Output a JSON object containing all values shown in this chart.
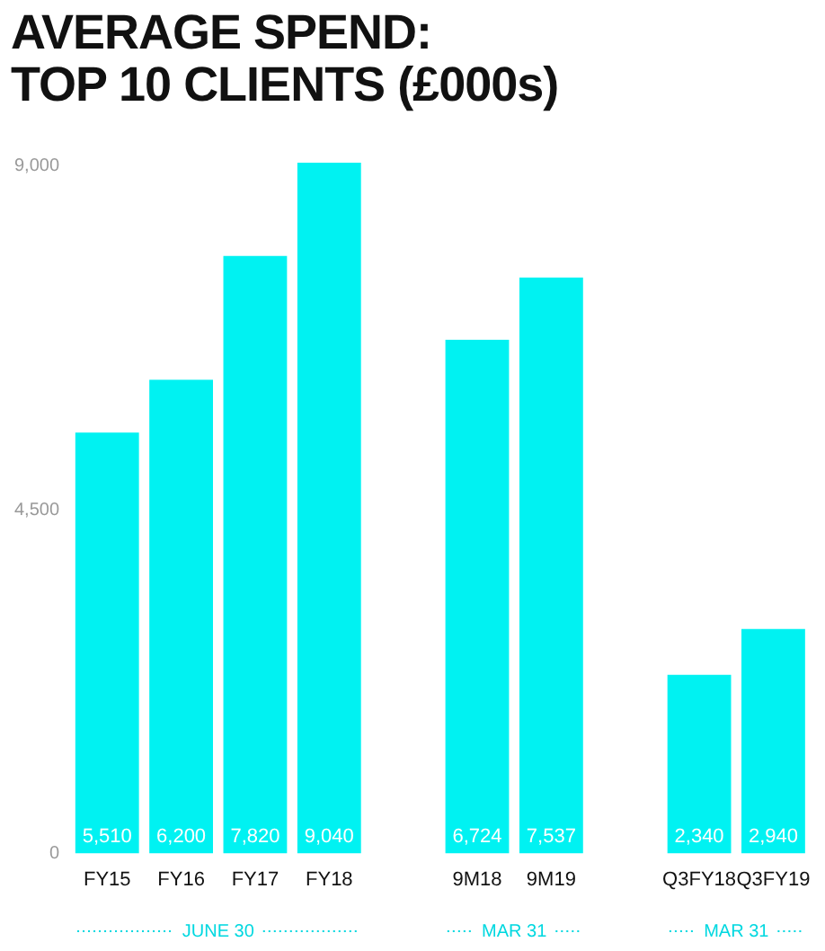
{
  "chart_data": {
    "type": "bar",
    "title": "AVERAGE SPEND:\nTOP 10 CLIENTS (£000s)",
    "categories": [
      "FY15",
      "FY16",
      "FY17",
      "FY18",
      null,
      "9M18",
      "9M19",
      null,
      "Q3FY18",
      "Q3FY19"
    ],
    "values": [
      5510,
      6200,
      7820,
      9040,
      null,
      6724,
      7537,
      null,
      2340,
      2940
    ],
    "color": "#00f2f2",
    "ylim": [
      0,
      9100
    ],
    "yticks": [
      {
        "value": 0,
        "label": "0"
      },
      {
        "value": 4500,
        "label": "4,500"
      },
      {
        "value": 9000,
        "label": "9,000"
      }
    ],
    "grid": false,
    "legend": false,
    "value_labels": [
      "5,510",
      "6,200",
      "7,820",
      "9,040",
      null,
      "6,724",
      "7,537",
      null,
      "2,340",
      "2,940"
    ],
    "annotations": [
      "JUNE 30",
      "MAR 31",
      "MAR 31"
    ]
  }
}
